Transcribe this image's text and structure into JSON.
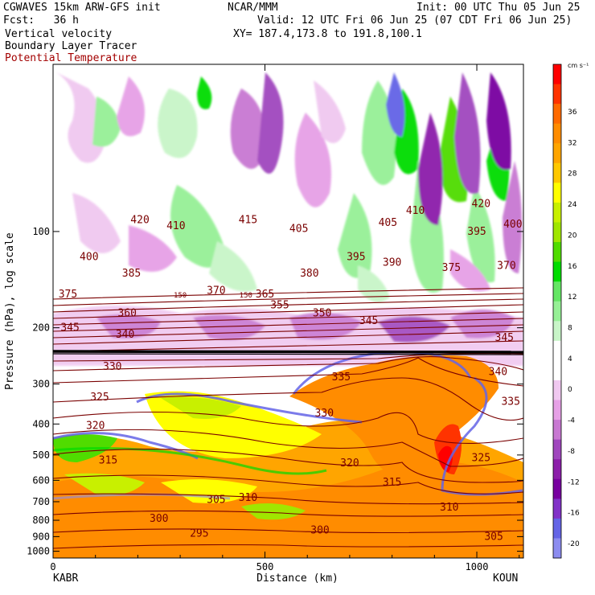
{
  "header": {
    "line1_left": "CGWAVES 15km ARW-GFS init",
    "line1_mid": "NCAR/MMM",
    "line1_right": "Init: 00 UTC Thu 05 Jun 25",
    "line2_left": "Fcst:   36 h",
    "line2_right": "Valid: 12 UTC Fri 06 Jun 25 (07 CDT Fri 06 Jun 25)",
    "line3_left": "Vertical velocity",
    "line3_right": "XY= 187.4,173.8 to 191.8,100.1",
    "line4_left": "Boundary Layer Tracer",
    "line5_left": "Potential Temperature"
  },
  "colors": {
    "theta_contour": "#7a0000",
    "tracer_contour": "#000000",
    "frame": "#000000"
  },
  "chart_data": {
    "type": "heatmap",
    "xlabel": "Distance (km)",
    "ylabel": "Pressure (hPa), log scale",
    "xlim": [
      0,
      1110
    ],
    "ylim": [
      1050,
      30
    ],
    "yscale": "log",
    "x_ticks": [
      "0",
      "500",
      "1000"
    ],
    "y_ticks": [
      "100",
      "200",
      "300",
      "400",
      "500",
      "600",
      "700",
      "800",
      "900",
      "1000"
    ],
    "start_label": "KABR",
    "end_label": "KOUN",
    "colorbar": {
      "unit": "cm s⁻¹",
      "tick_labels": [
        "36",
        "32",
        "28",
        "24",
        "20",
        "16",
        "12",
        "8",
        "4",
        "0",
        "-4",
        "-8",
        "-12",
        "-16",
        "-20"
      ],
      "colors": [
        "#ff0000",
        "#ff3300",
        "#ff6a00",
        "#ff8c00",
        "#ffa500",
        "#ffc800",
        "#ffff00",
        "#c8f000",
        "#a0e600",
        "#50dc00",
        "#00dc00",
        "#64e664",
        "#96f096",
        "#c8f5c8",
        "#ffffff",
        "#ffffff",
        "#f0c8f0",
        "#e6a0e6",
        "#c878d2",
        "#a046be",
        "#8c1eaa",
        "#7800a0",
        "#8232c8",
        "#6464e6",
        "#8c8cf0"
      ]
    },
    "theta_labels": [
      {
        "text": "420",
        "x": 205,
        "p": 92
      },
      {
        "text": "410",
        "x": 290,
        "p": 96
      },
      {
        "text": "415",
        "x": 460,
        "p": 92
      },
      {
        "text": "405",
        "x": 580,
        "p": 98
      },
      {
        "text": "405",
        "x": 790,
        "p": 94
      },
      {
        "text": "410",
        "x": 855,
        "p": 86
      },
      {
        "text": "420",
        "x": 1010,
        "p": 82
      },
      {
        "text": "400",
        "x": 1085,
        "p": 95
      },
      {
        "text": "395",
        "x": 1000,
        "p": 100
      },
      {
        "text": "400",
        "x": 85,
        "p": 120
      },
      {
        "text": "385",
        "x": 185,
        "p": 135
      },
      {
        "text": "395",
        "x": 715,
        "p": 120
      },
      {
        "text": "390",
        "x": 800,
        "p": 125
      },
      {
        "text": "380",
        "x": 605,
        "p": 135
      },
      {
        "text": "375",
        "x": 940,
        "p": 130
      },
      {
        "text": "370",
        "x": 1070,
        "p": 128
      },
      {
        "text": "375",
        "x": 35,
        "p": 157
      },
      {
        "text": "370",
        "x": 385,
        "p": 153
      },
      {
        "text": "365",
        "x": 500,
        "p": 157
      },
      {
        "text": "360",
        "x": 175,
        "p": 180
      },
      {
        "text": "355",
        "x": 535,
        "p": 170
      },
      {
        "text": "350",
        "x": 635,
        "p": 180
      },
      {
        "text": "345",
        "x": 745,
        "p": 190
      },
      {
        "text": "340",
        "x": 170,
        "p": 210
      },
      {
        "text": "345",
        "x": 40,
        "p": 200
      },
      {
        "text": "345",
        "x": 1065,
        "p": 215
      },
      {
        "text": "330",
        "x": 140,
        "p": 265
      },
      {
        "text": "335",
        "x": 680,
        "p": 285
      },
      {
        "text": "325",
        "x": 110,
        "p": 330
      },
      {
        "text": "330",
        "x": 640,
        "p": 370
      },
      {
        "text": "340",
        "x": 1050,
        "p": 275
      },
      {
        "text": "335",
        "x": 1080,
        "p": 340
      },
      {
        "text": "320",
        "x": 100,
        "p": 405
      },
      {
        "text": "325",
        "x": 1010,
        "p": 510
      },
      {
        "text": "315",
        "x": 130,
        "p": 520
      },
      {
        "text": "320",
        "x": 700,
        "p": 530
      },
      {
        "text": "315",
        "x": 800,
        "p": 610
      },
      {
        "text": "305",
        "x": 385,
        "p": 690
      },
      {
        "text": "310",
        "x": 460,
        "p": 680
      },
      {
        "text": "310",
        "x": 935,
        "p": 730
      },
      {
        "text": "300",
        "x": 250,
        "p": 790
      },
      {
        "text": "295",
        "x": 345,
        "p": 880
      },
      {
        "text": "300",
        "x": 630,
        "p": 860
      },
      {
        "text": "305",
        "x": 1040,
        "p": 900
      },
      {
        "text": "150",
        "x": 300,
        "p": 157
      },
      {
        "text": "150",
        "x": 455,
        "p": 157
      }
    ]
  }
}
